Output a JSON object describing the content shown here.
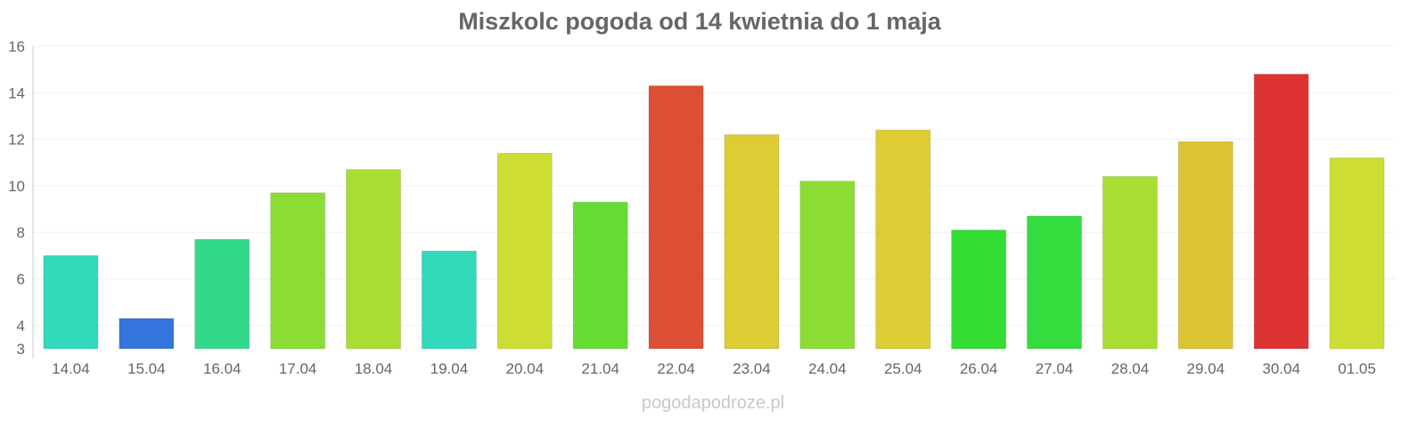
{
  "chart_data": {
    "type": "bar",
    "title": "Miszkolc pogoda od 14 kwietnia do 1 maja",
    "xlabel": "",
    "ylabel": "",
    "ylim": [
      3,
      16
    ],
    "yticks": [
      3,
      4,
      6,
      8,
      10,
      12,
      14,
      16
    ],
    "grid": true,
    "categories": [
      "14.04",
      "15.04",
      "16.04",
      "17.04",
      "18.04",
      "19.04",
      "20.04",
      "21.04",
      "22.04",
      "23.04",
      "24.04",
      "25.04",
      "26.04",
      "27.04",
      "28.04",
      "29.04",
      "30.04",
      "01.05"
    ],
    "values": [
      7.0,
      4.3,
      7.7,
      9.7,
      10.7,
      7.2,
      11.4,
      9.3,
      14.3,
      12.2,
      10.2,
      12.4,
      8.1,
      8.7,
      10.4,
      11.9,
      14.8,
      11.2
    ],
    "colors": [
      "#33d9bb",
      "#3375dd",
      "#33d98b",
      "#8bdd33",
      "#aadd33",
      "#33d9bb",
      "#cddd33",
      "#66dd33",
      "#dd5033",
      "#ddcc33",
      "#8bdd33",
      "#ddcc33",
      "#33dd33",
      "#33dd3d",
      "#aadd33",
      "#ddc433",
      "#dd3333",
      "#cddd33"
    ]
  },
  "watermark": "pogodapodroze.pl"
}
